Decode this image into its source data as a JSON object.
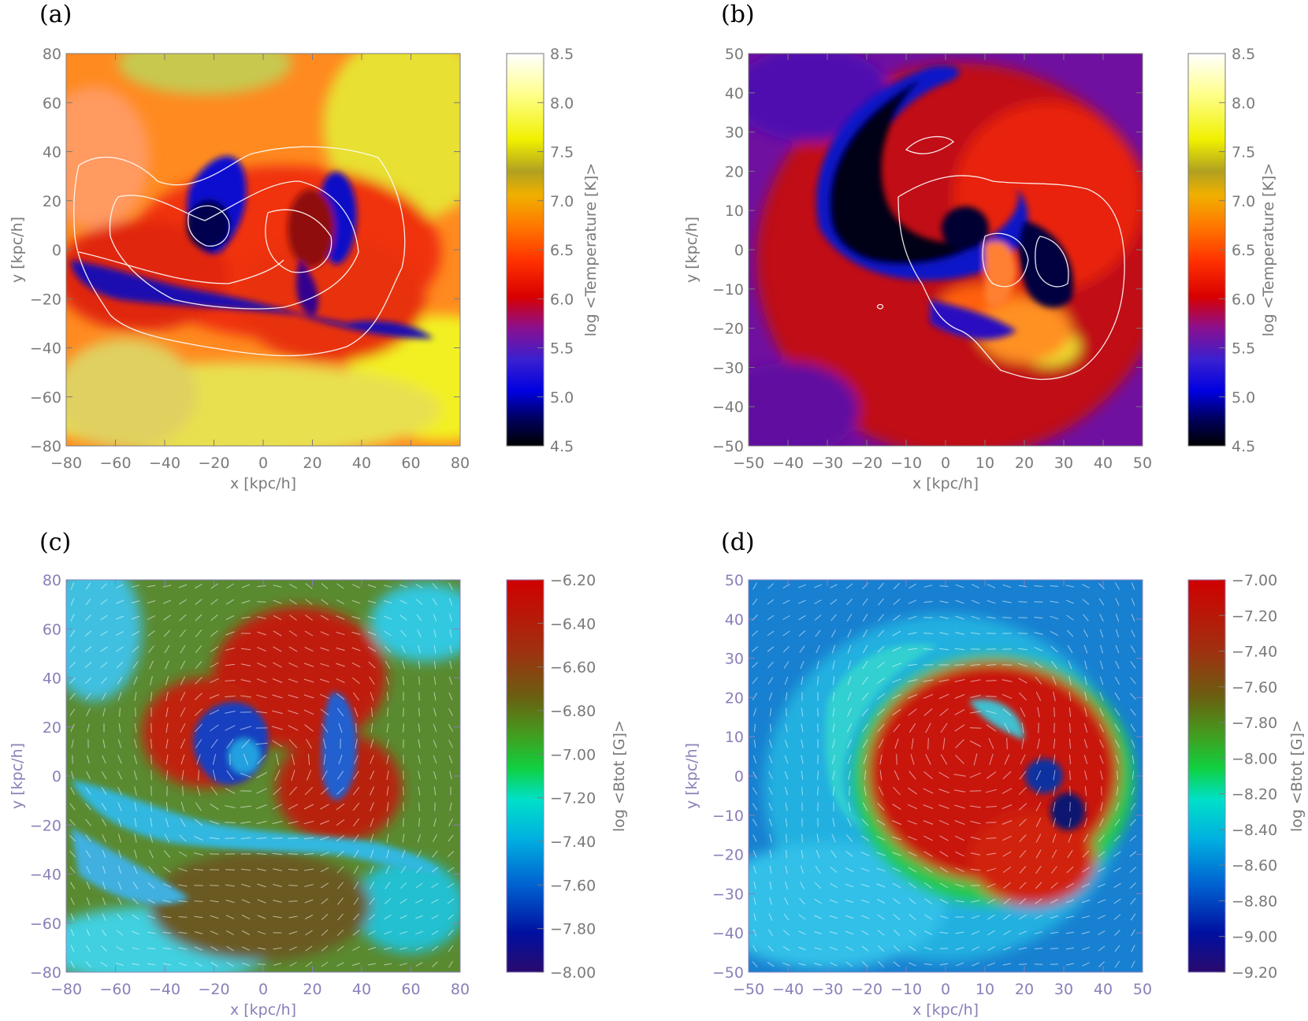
{
  "chart_data": [
    {
      "panel": "(a)",
      "type": "heatmap",
      "xlabel": "x [kpc/h]",
      "ylabel": "y [kpc/h]",
      "xlim": [
        -80,
        80
      ],
      "ylim": [
        -80,
        80
      ],
      "xticks": [
        "−80",
        "−60",
        "−40",
        "−20",
        "0",
        "20",
        "40",
        "60",
        "80"
      ],
      "yticks": [
        "80",
        "60",
        "40",
        "20",
        "0",
        "−20",
        "−40",
        "−60",
        "−80"
      ],
      "colorbar": {
        "label": "log <Temperature [K]>",
        "range": [
          4.5,
          8.5
        ],
        "ticks": [
          "8.5",
          "8.0",
          "7.5",
          "7.0",
          "6.5",
          "6.0",
          "5.5",
          "5.0",
          "4.5"
        ],
        "colormap": "temperature"
      },
      "overlay": "white density contours"
    },
    {
      "panel": "(b)",
      "type": "heatmap",
      "xlabel": "x [kpc/h]",
      "ylabel": "y [kpc/h]",
      "xlim": [
        -50,
        50
      ],
      "ylim": [
        -50,
        50
      ],
      "xticks": [
        "−50",
        "−40",
        "−30",
        "−20",
        "−10",
        "0",
        "10",
        "20",
        "30",
        "40",
        "50"
      ],
      "yticks": [
        "50",
        "40",
        "30",
        "20",
        "10",
        "0",
        "−10",
        "−20",
        "−30",
        "−40",
        "−50"
      ],
      "colorbar": {
        "label": "log <Temperature [K]>",
        "range": [
          4.5,
          8.5
        ],
        "ticks": [
          "8.5",
          "8.0",
          "7.5",
          "7.0",
          "6.5",
          "6.0",
          "5.5",
          "5.0",
          "4.5"
        ],
        "colormap": "temperature"
      },
      "overlay": "white density contours"
    },
    {
      "panel": "(c)",
      "type": "heatmap",
      "xlabel": "x [kpc/h]",
      "ylabel": "y [kpc/h]",
      "xlim": [
        -80,
        80
      ],
      "ylim": [
        -80,
        80
      ],
      "xticks": [
        "−80",
        "−60",
        "−40",
        "−20",
        "0",
        "20",
        "40",
        "60",
        "80"
      ],
      "yticks": [
        "80",
        "60",
        "40",
        "20",
        "0",
        "−20",
        "−40",
        "−60",
        "−80"
      ],
      "colorbar": {
        "label": "log <Btot [G]>",
        "range": [
          -8.0,
          -6.2
        ],
        "ticks": [
          "−6.20",
          "−6.40",
          "−6.60",
          "−6.80",
          "−7.00",
          "−7.20",
          "−7.40",
          "−7.60",
          "−7.80",
          "−8.00"
        ],
        "colormap": "field"
      },
      "overlay": "white magnetic field vectors"
    },
    {
      "panel": "(d)",
      "type": "heatmap",
      "xlabel": "x [kpc/h]",
      "ylabel": "y [kpc/h]",
      "xlim": [
        -50,
        50
      ],
      "ylim": [
        -50,
        50
      ],
      "xticks": [
        "−50",
        "−40",
        "−30",
        "−20",
        "−10",
        "0",
        "10",
        "20",
        "30",
        "40",
        "50"
      ],
      "yticks": [
        "50",
        "40",
        "30",
        "20",
        "10",
        "0",
        "−10",
        "−20",
        "−30",
        "−40",
        "−50"
      ],
      "colorbar": {
        "label": "log <Btot [G]>",
        "range": [
          -9.2,
          -7.0
        ],
        "ticks": [
          "−7.00",
          "−7.20",
          "−7.40",
          "−7.60",
          "−7.80",
          "−8.00",
          "−8.20",
          "−8.40",
          "−8.60",
          "−8.80",
          "−9.00",
          "−9.20"
        ],
        "colormap": "field"
      },
      "overlay": "white magnetic field vectors"
    }
  ],
  "colors": {
    "axis_temperature": "#7a7a7a",
    "axis_field": "#8a7fb8",
    "contour": "#ffffff"
  }
}
